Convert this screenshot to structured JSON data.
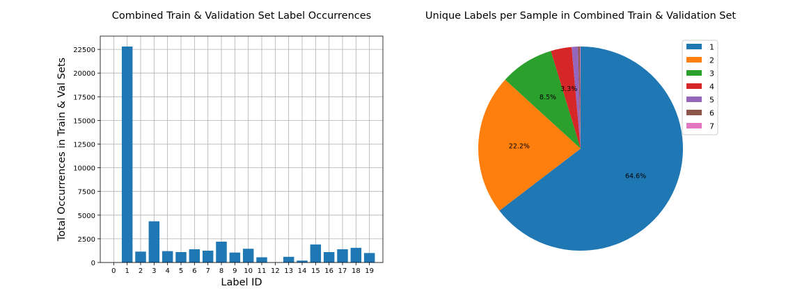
{
  "chart_data": [
    {
      "type": "bar",
      "title": "Combined Train & Validation Set Label Occurrences",
      "xlabel": "Label ID",
      "ylabel": "Total Occurrences in Train & Val Sets",
      "categories": [
        "0",
        "1",
        "2",
        "3",
        "4",
        "5",
        "6",
        "7",
        "8",
        "9",
        "10",
        "11",
        "12",
        "13",
        "14",
        "15",
        "16",
        "17",
        "18",
        "19"
      ],
      "values": [
        0,
        22800,
        1150,
        4350,
        1200,
        1100,
        1400,
        1250,
        2200,
        1050,
        1450,
        550,
        0,
        600,
        200,
        1900,
        1100,
        1400,
        1550,
        1000
      ],
      "yticks": [
        "0",
        "2500",
        "5000",
        "7500",
        "10000",
        "12500",
        "15000",
        "17500",
        "20000",
        "22500"
      ],
      "ylim": [
        0,
        23900
      ],
      "grid": true,
      "bar_color": "#1f77b4"
    },
    {
      "type": "pie",
      "title": "Unique Labels per Sample in Combined Train & Validation Set",
      "labels": [
        "1",
        "2",
        "3",
        "4",
        "5",
        "6",
        "7"
      ],
      "values": [
        64.6,
        22.2,
        8.5,
        3.3,
        1.0,
        0.3,
        0.1
      ],
      "value_labels": [
        "64.6%",
        "22.2%",
        "8.5%",
        "3.3%",
        "",
        "",
        ""
      ],
      "colors": [
        "#1f77b4",
        "#ff7f0e",
        "#2ca02c",
        "#d62728",
        "#9467bd",
        "#8c564b",
        "#e377c2"
      ],
      "start_angle": 90,
      "counterclockwise": false,
      "legend_position": "upper-right"
    }
  ]
}
